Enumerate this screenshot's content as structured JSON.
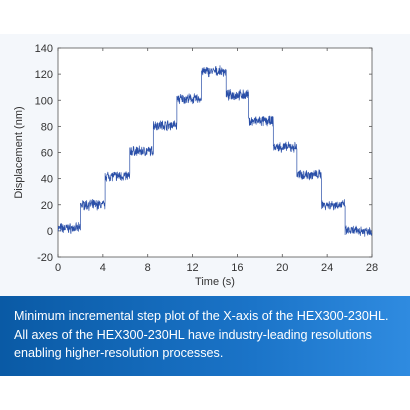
{
  "chart_data": {
    "type": "line",
    "title": "",
    "xlabel": "Time (s)",
    "ylabel": "Displacement (nm)",
    "xlim": [
      0,
      28
    ],
    "ylim": [
      -20,
      140
    ],
    "xticks": [
      0,
      4,
      8,
      12,
      16,
      20,
      24,
      28
    ],
    "yticks": [
      -20,
      0,
      20,
      40,
      60,
      80,
      100,
      120,
      140
    ],
    "grid": false,
    "legend": "none",
    "series": [
      {
        "color": "#2a4fa8",
        "noise_nm": 3,
        "steps": [
          {
            "x": [
              0,
              2
            ],
            "y": 2
          },
          {
            "x": [
              2,
              4.2
            ],
            "y": 20
          },
          {
            "x": [
              4.2,
              6.4
            ],
            "y": 42
          },
          {
            "x": [
              6.4,
              8.5
            ],
            "y": 61
          },
          {
            "x": [
              8.5,
              10.6
            ],
            "y": 81
          },
          {
            "x": [
              10.6,
              12.8
            ],
            "y": 101
          },
          {
            "x": [
              12.8,
              15
            ],
            "y": 122
          },
          {
            "x": [
              15,
              17
            ],
            "y": 104
          },
          {
            "x": [
              17,
              19.2
            ],
            "y": 84
          },
          {
            "x": [
              19.2,
              21.3
            ],
            "y": 64
          },
          {
            "x": [
              21.3,
              23.5
            ],
            "y": 43
          },
          {
            "x": [
              23.5,
              25.6
            ],
            "y": 20
          },
          {
            "x": [
              25.6,
              28
            ],
            "y": 0
          }
        ]
      }
    ]
  },
  "caption": {
    "text": "Minimum incremental step plot of the X-axis of the HEX300-230HL. All axes of the HEX300-230HL have industry-leading resolutions enabling higher-resolution processes."
  }
}
